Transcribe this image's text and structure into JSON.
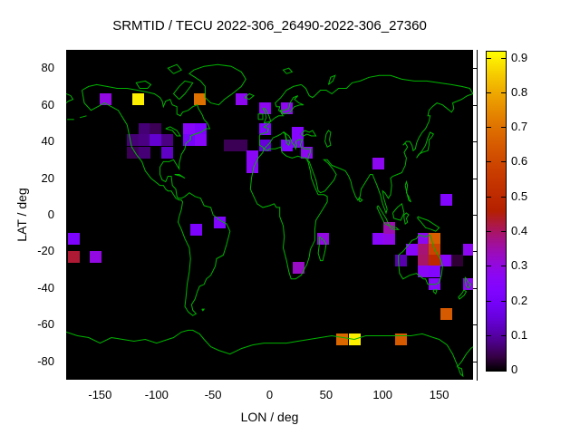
{
  "title": "SRMTID / TECU 2022-306_26490-2022-306_27360",
  "axes": {
    "x": {
      "label": "LON / deg",
      "range": [
        -180,
        180
      ],
      "ticks": [
        {
          "value": -150,
          "label": "-150"
        },
        {
          "value": -100,
          "label": "-100"
        },
        {
          "value": -50,
          "label": "-50"
        },
        {
          "value": 0,
          "label": "0"
        },
        {
          "value": 50,
          "label": "50"
        },
        {
          "value": 100,
          "label": "100"
        },
        {
          "value": 150,
          "label": "150"
        }
      ]
    },
    "y": {
      "label": "LAT / deg",
      "range": [
        -90,
        90
      ],
      "ticks": [
        {
          "value": 80,
          "label": "80"
        },
        {
          "value": 60,
          "label": "60"
        },
        {
          "value": 40,
          "label": "40"
        },
        {
          "value": 20,
          "label": "20"
        },
        {
          "value": 0,
          "label": "0"
        },
        {
          "value": -20,
          "label": "-20"
        },
        {
          "value": -40,
          "label": "-40"
        },
        {
          "value": -60,
          "label": "-60"
        },
        {
          "value": -80,
          "label": "-80"
        }
      ]
    }
  },
  "colorbar": {
    "min": 0,
    "max": 0.92,
    "palette": "gnuplot rgbformulae 7,5,15 (black-violet-magenta-red-orange-yellow)",
    "ticks": [
      {
        "value": 0.0,
        "label": "0"
      },
      {
        "value": 0.1,
        "label": "0.1"
      },
      {
        "value": 0.2,
        "label": "0.2"
      },
      {
        "value": 0.3,
        "label": "0.3"
      },
      {
        "value": 0.4,
        "label": "0.4"
      },
      {
        "value": 0.5,
        "label": "0.5"
      },
      {
        "value": 0.6,
        "label": "0.6"
      },
      {
        "value": 0.7,
        "label": "0.7"
      },
      {
        "value": 0.8,
        "label": "0.8"
      },
      {
        "value": 0.9,
        "label": "0.9"
      }
    ]
  },
  "map": {
    "background": "#000000",
    "coastline_color": "#00b400"
  },
  "chart_data": {
    "type": "heatmap",
    "title": "SRMTID / TECU 2022-306_26490-2022-306_27360",
    "xlabel": "LON / deg",
    "ylabel": "LAT / deg",
    "x_range": [
      -180,
      180
    ],
    "y_range": [
      -90,
      90
    ],
    "value_units": "TECU",
    "value_range": [
      0,
      0.92
    ],
    "cell_size_deg": {
      "lon": 10,
      "lat": 6
    },
    "cells": [
      {
        "lon": -145,
        "lat": 63,
        "value": 0.3
      },
      {
        "lon": -116,
        "lat": 63,
        "value": 0.9
      },
      {
        "lon": -62,
        "lat": 63,
        "value": 0.7
      },
      {
        "lon": -111,
        "lat": 47,
        "value": 0.07
      },
      {
        "lon": -101,
        "lat": 47,
        "value": 0.05
      },
      {
        "lon": -71,
        "lat": 47,
        "value": 0.26
      },
      {
        "lon": -61,
        "lat": 47,
        "value": 0.22
      },
      {
        "lon": -121,
        "lat": 41,
        "value": 0.07
      },
      {
        "lon": -111,
        "lat": 41,
        "value": 0.08
      },
      {
        "lon": -101,
        "lat": 41,
        "value": 0.14
      },
      {
        "lon": -91,
        "lat": 41,
        "value": 0.08
      },
      {
        "lon": -71,
        "lat": 41,
        "value": 0.2
      },
      {
        "lon": -61,
        "lat": 41,
        "value": 0.26
      },
      {
        "lon": -121,
        "lat": 34,
        "value": 0.05
      },
      {
        "lon": -111,
        "lat": 34,
        "value": 0.07
      },
      {
        "lon": -91,
        "lat": 34,
        "value": 0.13
      },
      {
        "lon": -25,
        "lat": 63,
        "value": 0.28
      },
      {
        "lon": -4,
        "lat": 58,
        "value": 0.28
      },
      {
        "lon": 15,
        "lat": 58,
        "value": 0.28
      },
      {
        "lon": -4,
        "lat": 47,
        "value": 0.24
      },
      {
        "lon": 25,
        "lat": 45,
        "value": 0.25
      },
      {
        "lon": -35,
        "lat": 38,
        "value": 0.05
      },
      {
        "lon": -25,
        "lat": 38,
        "value": 0.05
      },
      {
        "lon": -4,
        "lat": 38,
        "value": 0.15
      },
      {
        "lon": 15,
        "lat": 38,
        "value": 0.24
      },
      {
        "lon": -15,
        "lat": 32,
        "value": 0.27
      },
      {
        "lon": -15,
        "lat": 26,
        "value": 0.27
      },
      {
        "lon": 25,
        "lat": 40,
        "value": 0.25
      },
      {
        "lon": 33,
        "lat": 34,
        "value": 0.28
      },
      {
        "lon": 96,
        "lat": 28,
        "value": 0.28
      },
      {
        "lon": 156,
        "lat": 8,
        "value": 0.24
      },
      {
        "lon": -65,
        "lat": -8,
        "value": 0.22
      },
      {
        "lon": -44,
        "lat": -4,
        "value": 0.23
      },
      {
        "lon": -173,
        "lat": -13,
        "value": 0.22
      },
      {
        "lon": -173,
        "lat": -23,
        "value": 0.43
      },
      {
        "lon": -154,
        "lat": -23,
        "value": 0.3
      },
      {
        "lon": 47,
        "lat": -13,
        "value": 0.3
      },
      {
        "lon": 26,
        "lat": -29,
        "value": 0.33
      },
      {
        "lon": 96,
        "lat": -13,
        "value": 0.26
      },
      {
        "lon": 106,
        "lat": -13,
        "value": 0.29
      },
      {
        "lon": 106,
        "lat": -7,
        "value": 0.35
      },
      {
        "lon": 126,
        "lat": -19,
        "value": 0.26
      },
      {
        "lon": 136,
        "lat": -13,
        "value": 0.28
      },
      {
        "lon": 136,
        "lat": -19,
        "value": 0.39
      },
      {
        "lon": 146,
        "lat": -13,
        "value": 0.66
      },
      {
        "lon": 146,
        "lat": -19,
        "value": 0.59
      },
      {
        "lon": 116,
        "lat": -25,
        "value": 0.11
      },
      {
        "lon": 136,
        "lat": -25,
        "value": 0.4
      },
      {
        "lon": 146,
        "lat": -25,
        "value": 0.5
      },
      {
        "lon": 156,
        "lat": -25,
        "value": 0.26
      },
      {
        "lon": 166,
        "lat": -25,
        "value": 0.03
      },
      {
        "lon": 136,
        "lat": -31,
        "value": 0.27
      },
      {
        "lon": 146,
        "lat": -31,
        "value": 0.24
      },
      {
        "lon": 146,
        "lat": -38,
        "value": 0.26
      },
      {
        "lon": 176,
        "lat": -19,
        "value": 0.28
      },
      {
        "lon": 176,
        "lat": -38,
        "value": 0.28
      },
      {
        "lon": 156,
        "lat": -54,
        "value": 0.65
      },
      {
        "lon": 64,
        "lat": -68,
        "value": 0.68
      },
      {
        "lon": 75,
        "lat": -68,
        "value": 0.9
      },
      {
        "lon": 116,
        "lat": -68,
        "value": 0.65
      }
    ]
  }
}
